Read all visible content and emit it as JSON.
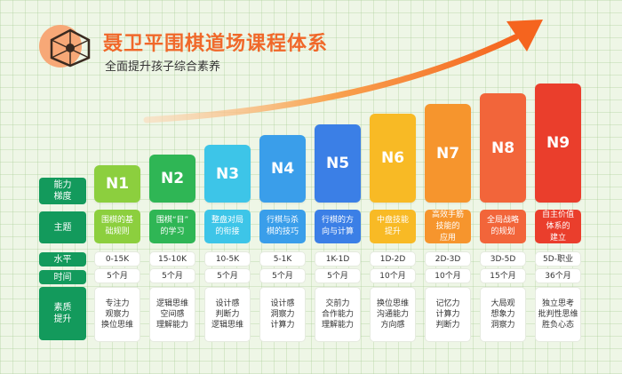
{
  "header": {
    "title": "聂卫平围棋道场课程体系",
    "subtitle": "全面提升孩子综合素养",
    "logo_icon": "go-board-logo-icon"
  },
  "row_labels": {
    "level": "能力\n梯度",
    "theme": "主题",
    "rank": "水平",
    "duration": "时间",
    "qualities": "素质\n提升"
  },
  "levels": [
    {
      "name": "N1",
      "color": "#8ccf3e",
      "theme": "围棋的基\n础规则",
      "rank": "0-15K",
      "duration": "5个月",
      "qualities": "专注力\n观察力\n换位思维"
    },
    {
      "name": "N2",
      "color": "#2fb655",
      "theme": "围棋“目”\n的学习",
      "rank": "15-10K",
      "duration": "5个月",
      "qualities": "逻辑思维\n空间感\n理解能力"
    },
    {
      "name": "N3",
      "color": "#3dc5e8",
      "theme": "整盘对局\n的衔接",
      "rank": "10-5K",
      "duration": "5个月",
      "qualities": "设计感\n判断力\n逻辑思维"
    },
    {
      "name": "N4",
      "color": "#3a9eea",
      "theme": "行棋与杀\n棋的技巧",
      "rank": "5-1K",
      "duration": "5个月",
      "qualities": "设计感\n洞察力\n计算力"
    },
    {
      "name": "N5",
      "color": "#3b7fe6",
      "theme": "行棋的方\n向与计算",
      "rank": "1K-1D",
      "duration": "5个月",
      "qualities": "交前力\n合作能力\n理解能力"
    },
    {
      "name": "N6",
      "color": "#f8ba25",
      "theme": "中盘技能\n提升",
      "rank": "1D-2D",
      "duration": "10个月",
      "qualities": "换位思维\n沟通能力\n方向感"
    },
    {
      "name": "N7",
      "color": "#f6952d",
      "theme": "高效手筋\n技能的\n应用",
      "rank": "2D-3D",
      "duration": "10个月",
      "qualities": "记忆力\n计算力\n判断力"
    },
    {
      "name": "N8",
      "color": "#f2653a",
      "theme": "全局战略\n的规划",
      "rank": "3D-5D",
      "duration": "15个月",
      "qualities": "大局观\n想象力\n洞察力"
    },
    {
      "name": "N9",
      "color": "#ea3e2c",
      "theme": "自主价值\n体系的\n建立",
      "rank": "5D-职业",
      "duration": "36个月",
      "qualities": "独立思考\n批判性思维\n胜负心态"
    }
  ],
  "icons": {
    "arrow": "growth-arrow-icon"
  }
}
